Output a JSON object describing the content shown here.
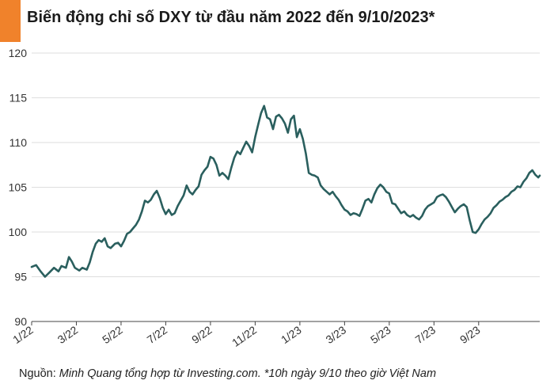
{
  "header": {
    "title": "Biến động chỉ số DXY từ đầu năm 2022 đến 9/10/2023*",
    "accent_color": "#f0822b"
  },
  "footer": {
    "source_label": "Nguồn: ",
    "source_text": "Minh Quang tổng hợp từ Investing.com. *10h ngày 9/10 theo giờ Việt Nam"
  },
  "chart_data": {
    "type": "line",
    "title": "Biến động chỉ số DXY từ đầu năm 2022 đến 9/10/2023*",
    "xlabel": "",
    "ylabel": "",
    "ylim": [
      90,
      120
    ],
    "yticks": [
      90,
      95,
      100,
      105,
      110,
      115,
      120
    ],
    "xticks": [
      "1/22",
      "3/22",
      "5/22",
      "7/22",
      "9/22",
      "11/22",
      "1/23",
      "3/23",
      "5/23",
      "7/23",
      "9/23"
    ],
    "grid": "horizontal",
    "line_color": "#2a5f5e",
    "series": [
      {
        "name": "",
        "points": [
          [
            0.0,
            96.1
          ],
          [
            0.15,
            96.3
          ],
          [
            0.3,
            95.6
          ],
          [
            0.45,
            95.0
          ],
          [
            0.6,
            95.5
          ],
          [
            0.75,
            96.0
          ],
          [
            0.9,
            95.6
          ],
          [
            1.0,
            96.2
          ],
          [
            1.15,
            96.0
          ],
          [
            1.25,
            97.2
          ],
          [
            1.35,
            96.7
          ],
          [
            1.45,
            96.0
          ],
          [
            1.6,
            95.7
          ],
          [
            1.7,
            96.0
          ],
          [
            1.85,
            95.8
          ],
          [
            1.95,
            96.6
          ],
          [
            2.05,
            97.8
          ],
          [
            2.15,
            98.7
          ],
          [
            2.25,
            99.1
          ],
          [
            2.35,
            98.9
          ],
          [
            2.45,
            99.3
          ],
          [
            2.55,
            98.4
          ],
          [
            2.65,
            98.2
          ],
          [
            2.8,
            98.7
          ],
          [
            2.9,
            98.8
          ],
          [
            3.0,
            98.4
          ],
          [
            3.1,
            99.0
          ],
          [
            3.2,
            99.8
          ],
          [
            3.3,
            100.0
          ],
          [
            3.4,
            100.4
          ],
          [
            3.5,
            100.8
          ],
          [
            3.6,
            101.4
          ],
          [
            3.7,
            102.3
          ],
          [
            3.8,
            103.5
          ],
          [
            3.9,
            103.3
          ],
          [
            4.0,
            103.6
          ],
          [
            4.1,
            104.2
          ],
          [
            4.2,
            104.6
          ],
          [
            4.3,
            103.8
          ],
          [
            4.4,
            102.7
          ],
          [
            4.5,
            102.0
          ],
          [
            4.6,
            102.5
          ],
          [
            4.7,
            101.9
          ],
          [
            4.8,
            102.1
          ],
          [
            4.9,
            102.9
          ],
          [
            5.0,
            103.5
          ],
          [
            5.1,
            104.1
          ],
          [
            5.2,
            105.2
          ],
          [
            5.3,
            104.5
          ],
          [
            5.4,
            104.2
          ],
          [
            5.5,
            104.7
          ],
          [
            5.6,
            105.1
          ],
          [
            5.7,
            106.4
          ],
          [
            5.8,
            106.9
          ],
          [
            5.9,
            107.3
          ],
          [
            6.0,
            108.4
          ],
          [
            6.1,
            108.2
          ],
          [
            6.2,
            107.5
          ],
          [
            6.3,
            106.3
          ],
          [
            6.4,
            106.6
          ],
          [
            6.5,
            106.3
          ],
          [
            6.6,
            105.9
          ],
          [
            6.7,
            107.2
          ],
          [
            6.8,
            108.3
          ],
          [
            6.9,
            109.0
          ],
          [
            7.0,
            108.7
          ],
          [
            7.1,
            109.4
          ],
          [
            7.2,
            110.1
          ],
          [
            7.3,
            109.6
          ],
          [
            7.4,
            108.9
          ],
          [
            7.5,
            110.6
          ],
          [
            7.6,
            112.0
          ],
          [
            7.7,
            113.3
          ],
          [
            7.8,
            114.1
          ],
          [
            7.9,
            112.8
          ],
          [
            8.0,
            112.6
          ],
          [
            8.1,
            111.5
          ],
          [
            8.2,
            112.9
          ],
          [
            8.3,
            113.1
          ],
          [
            8.4,
            112.7
          ],
          [
            8.5,
            112.1
          ],
          [
            8.6,
            111.1
          ],
          [
            8.7,
            112.6
          ],
          [
            8.8,
            113.0
          ],
          [
            8.9,
            110.6
          ],
          [
            9.0,
            111.5
          ],
          [
            9.1,
            110.4
          ],
          [
            9.2,
            108.8
          ],
          [
            9.3,
            106.6
          ],
          [
            9.4,
            106.4
          ],
          [
            9.5,
            106.3
          ],
          [
            9.6,
            106.1
          ],
          [
            9.7,
            105.2
          ],
          [
            9.8,
            104.8
          ],
          [
            9.9,
            104.5
          ],
          [
            10.0,
            104.2
          ],
          [
            10.1,
            104.5
          ],
          [
            10.2,
            104.0
          ],
          [
            10.3,
            103.6
          ],
          [
            10.4,
            103.0
          ],
          [
            10.5,
            102.5
          ],
          [
            10.6,
            102.3
          ],
          [
            10.7,
            101.9
          ],
          [
            10.8,
            102.1
          ],
          [
            10.9,
            102.0
          ],
          [
            11.0,
            101.8
          ],
          [
            11.1,
            102.6
          ],
          [
            11.2,
            103.5
          ],
          [
            11.3,
            103.7
          ],
          [
            11.4,
            103.3
          ],
          [
            11.5,
            104.2
          ],
          [
            11.6,
            104.9
          ],
          [
            11.7,
            105.3
          ],
          [
            11.8,
            105.0
          ],
          [
            11.9,
            104.5
          ],
          [
            12.0,
            104.3
          ],
          [
            12.1,
            103.2
          ],
          [
            12.2,
            103.1
          ],
          [
            12.3,
            102.6
          ],
          [
            12.4,
            102.1
          ],
          [
            12.5,
            102.3
          ],
          [
            12.6,
            101.9
          ],
          [
            12.7,
            101.7
          ],
          [
            12.8,
            101.9
          ],
          [
            12.9,
            101.6
          ],
          [
            13.0,
            101.4
          ],
          [
            13.1,
            101.8
          ],
          [
            13.2,
            102.5
          ],
          [
            13.3,
            102.9
          ],
          [
            13.4,
            103.1
          ],
          [
            13.5,
            103.3
          ],
          [
            13.6,
            103.9
          ],
          [
            13.7,
            104.1
          ],
          [
            13.8,
            104.2
          ],
          [
            13.9,
            103.9
          ],
          [
            14.0,
            103.4
          ],
          [
            14.1,
            102.8
          ],
          [
            14.2,
            102.2
          ],
          [
            14.3,
            102.6
          ],
          [
            14.4,
            102.9
          ],
          [
            14.5,
            103.1
          ],
          [
            14.6,
            102.8
          ],
          [
            14.7,
            101.3
          ],
          [
            14.8,
            100.0
          ],
          [
            14.9,
            99.9
          ],
          [
            15.0,
            100.3
          ],
          [
            15.1,
            100.9
          ],
          [
            15.2,
            101.4
          ],
          [
            15.3,
            101.7
          ],
          [
            15.4,
            102.1
          ],
          [
            15.5,
            102.7
          ],
          [
            15.6,
            103.0
          ],
          [
            15.7,
            103.4
          ],
          [
            15.8,
            103.6
          ],
          [
            15.9,
            103.9
          ],
          [
            16.0,
            104.1
          ],
          [
            16.1,
            104.5
          ],
          [
            16.2,
            104.7
          ],
          [
            16.3,
            105.1
          ],
          [
            16.4,
            105.0
          ],
          [
            16.5,
            105.6
          ],
          [
            16.6,
            106.0
          ],
          [
            16.7,
            106.6
          ],
          [
            16.8,
            106.9
          ],
          [
            16.9,
            106.4
          ],
          [
            17.0,
            106.1
          ],
          [
            17.05,
            106.3
          ]
        ]
      }
    ]
  }
}
